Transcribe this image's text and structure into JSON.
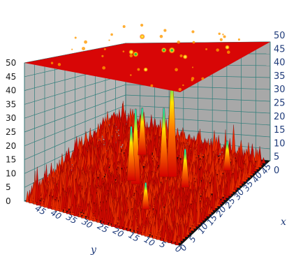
{
  "chart_data": {
    "type": "surface3d",
    "title": "",
    "xlabel": "x",
    "ylabel": "y",
    "zlabel": "",
    "xlim": [
      0,
      50
    ],
    "ylim": [
      0,
      50
    ],
    "zlim": [
      0,
      50
    ],
    "z_ticks": [
      "0",
      "5",
      "10",
      "15",
      "20",
      "25",
      "30",
      "35",
      "40",
      "45",
      "50"
    ],
    "y_ticks": [
      "45",
      "40",
      "35",
      "30",
      "25",
      "20",
      "15",
      "10",
      "5",
      "0"
    ],
    "x_ticks": [
      "0",
      "5",
      "10",
      "15",
      "20",
      "25",
      "30",
      "35",
      "40",
      "45"
    ],
    "grid": true,
    "top_projection_plane": 50,
    "colors": {
      "low": "#d40000",
      "mid": "#ffe000",
      "high": "#00ffd0",
      "walls": "#b9b9b9",
      "grid": "#2e7d7a",
      "floor": "#000000"
    },
    "peaks": [
      {
        "x": 22,
        "y": 27,
        "z": 29
      },
      {
        "x": 23,
        "y": 29,
        "z": 21
      },
      {
        "x": 30,
        "y": 20,
        "z": 42
      },
      {
        "x": 29,
        "y": 22,
        "z": 27
      },
      {
        "x": 27,
        "y": 14,
        "z": 15
      },
      {
        "x": 36,
        "y": 33,
        "z": 19
      },
      {
        "x": 12,
        "y": 18,
        "z": 10
      },
      {
        "x": 40,
        "y": 8,
        "z": 12
      }
    ]
  }
}
